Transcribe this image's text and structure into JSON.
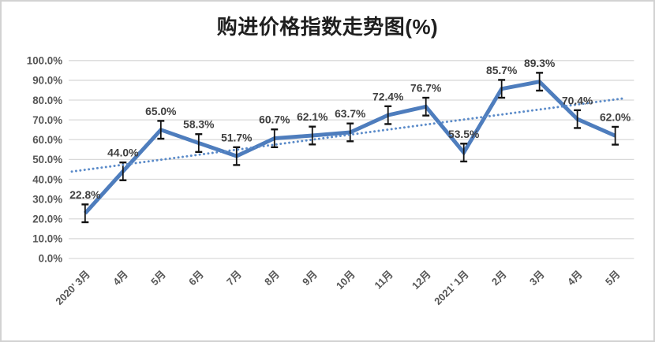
{
  "chart_data": {
    "type": "line",
    "title": "购进价格指数走势图(%)",
    "categories": [
      "2020’ 3月",
      "4月",
      "5月",
      "6月",
      "7月",
      "8月",
      "9月",
      "10月",
      "11月",
      "12月",
      "2021’ 1月",
      "2月",
      "3月",
      "4月",
      "5月"
    ],
    "series": [
      {
        "name": "购进价格指数",
        "values": [
          22.8,
          44.0,
          65.0,
          58.3,
          51.7,
          60.7,
          62.1,
          63.7,
          72.4,
          76.7,
          53.5,
          85.7,
          89.3,
          70.4,
          62.0
        ]
      }
    ],
    "data_labels": [
      "22.8%",
      "44.0%",
      "65.0%",
      "58.3%",
      "51.7%",
      "60.7%",
      "62.1%",
      "63.7%",
      "72.4%",
      "76.7%",
      "53.5%",
      "85.7%",
      "89.3%",
      "70.4%",
      "62.0%"
    ],
    "y_ticks": [
      "0.0%",
      "10.0%",
      "20.0%",
      "30.0%",
      "40.0%",
      "50.0%",
      "60.0%",
      "70.0%",
      "80.0%",
      "90.0%",
      "100.0%"
    ],
    "ylim": [
      0,
      100
    ],
    "y_step": 10,
    "error_bar_pct": 4.5,
    "trendline": {
      "type": "linear",
      "style": "dotted",
      "start_value": 43.9,
      "end_value": 80.8
    },
    "grid": true,
    "legend": "none",
    "x_label_rotation": -45,
    "colors": {
      "series_line": "#4E7DBD",
      "trendline": "#5B8BC9",
      "error_bar": "#121212",
      "data_label": "#3F3F3F",
      "axis_label": "#565656",
      "gridline": "#D9D9D9",
      "title": "#1F1F1F",
      "frame_border": "#D2D2D2",
      "background": "#FFFFFF"
    }
  }
}
